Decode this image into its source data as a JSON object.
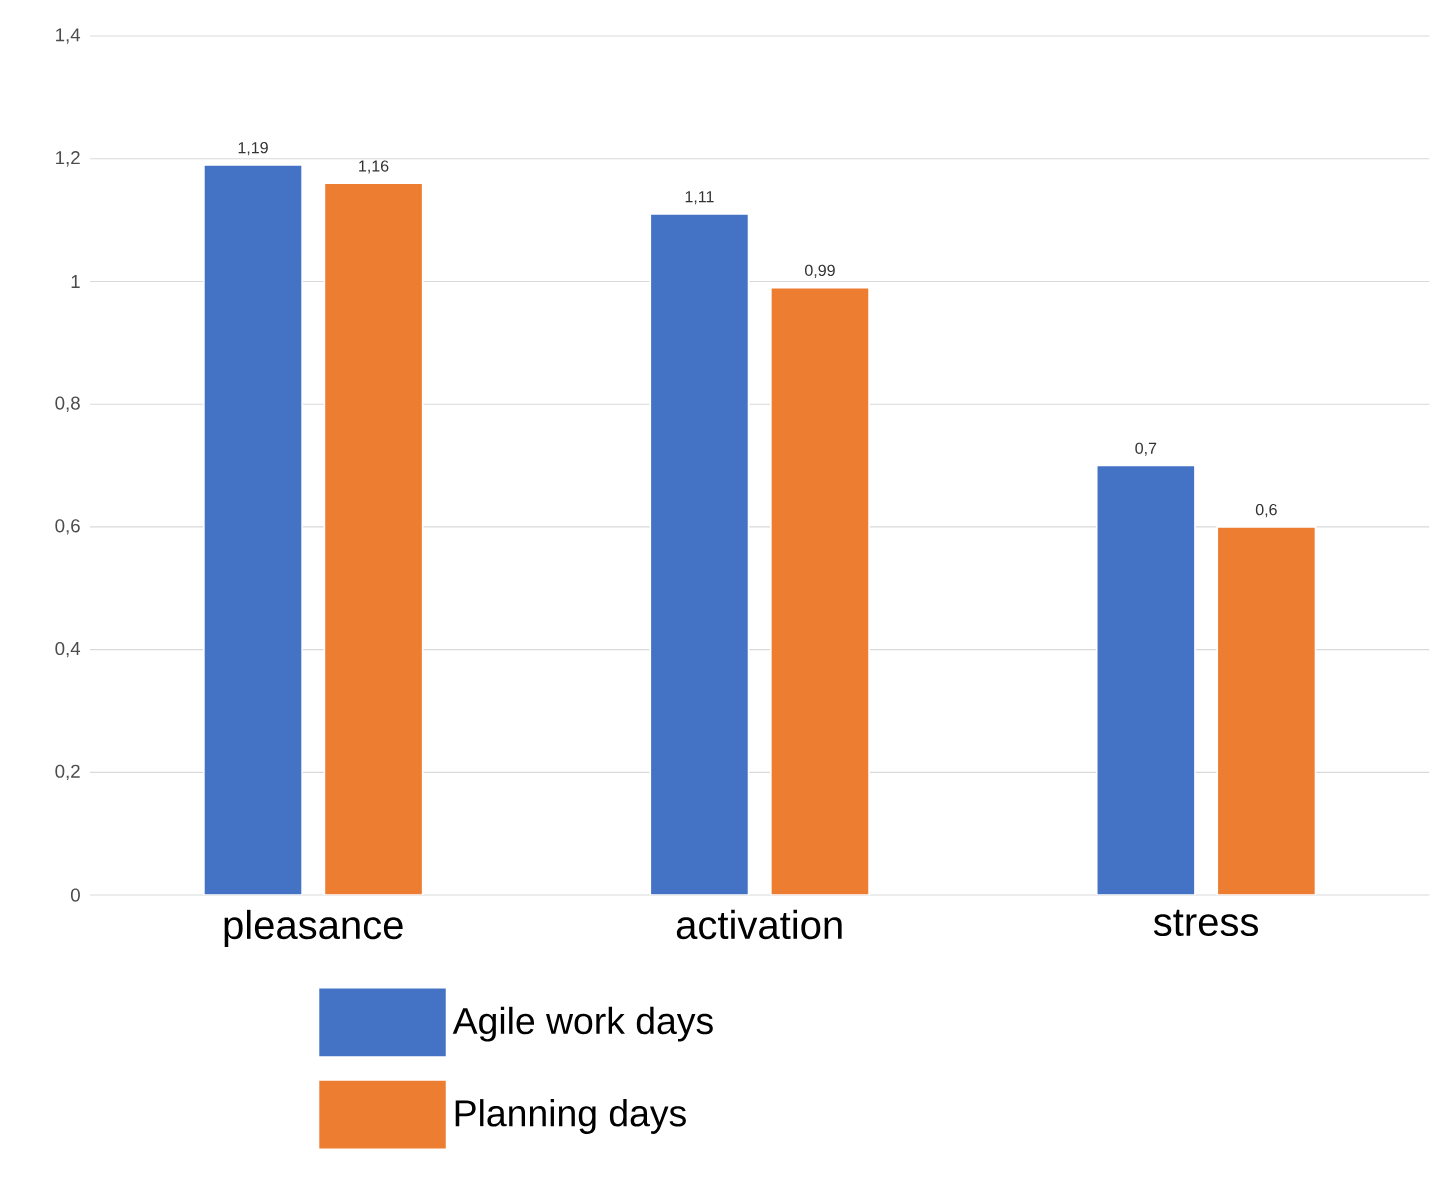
{
  "chart_data": {
    "type": "bar",
    "categories": [
      "pleasance",
      "activation",
      "stress"
    ],
    "series": [
      {
        "name": "Agile work days",
        "color": "#4472c4",
        "values": [
          1.19,
          1.11,
          0.7
        ],
        "value_labels": [
          "1,19",
          "1,11",
          "0,7"
        ]
      },
      {
        "name": "Planning days",
        "color": "#ed7d31",
        "values": [
          1.16,
          0.99,
          0.6
        ],
        "value_labels": [
          "1,16",
          "0,99",
          "0,6"
        ]
      }
    ],
    "ylim": [
      0,
      1.4
    ],
    "yticks": [
      {
        "value": 0,
        "label": "0"
      },
      {
        "value": 0.2,
        "label": "0,2"
      },
      {
        "value": 0.4,
        "label": "0,4"
      },
      {
        "value": 0.6,
        "label": "0,6"
      },
      {
        "value": 0.8,
        "label": "0,8"
      },
      {
        "value": 1,
        "label": "1"
      },
      {
        "value": 1.2,
        "label": "1,2"
      },
      {
        "value": 1.4,
        "label": "1,4"
      }
    ],
    "grid": "y",
    "legend": "bottom"
  }
}
